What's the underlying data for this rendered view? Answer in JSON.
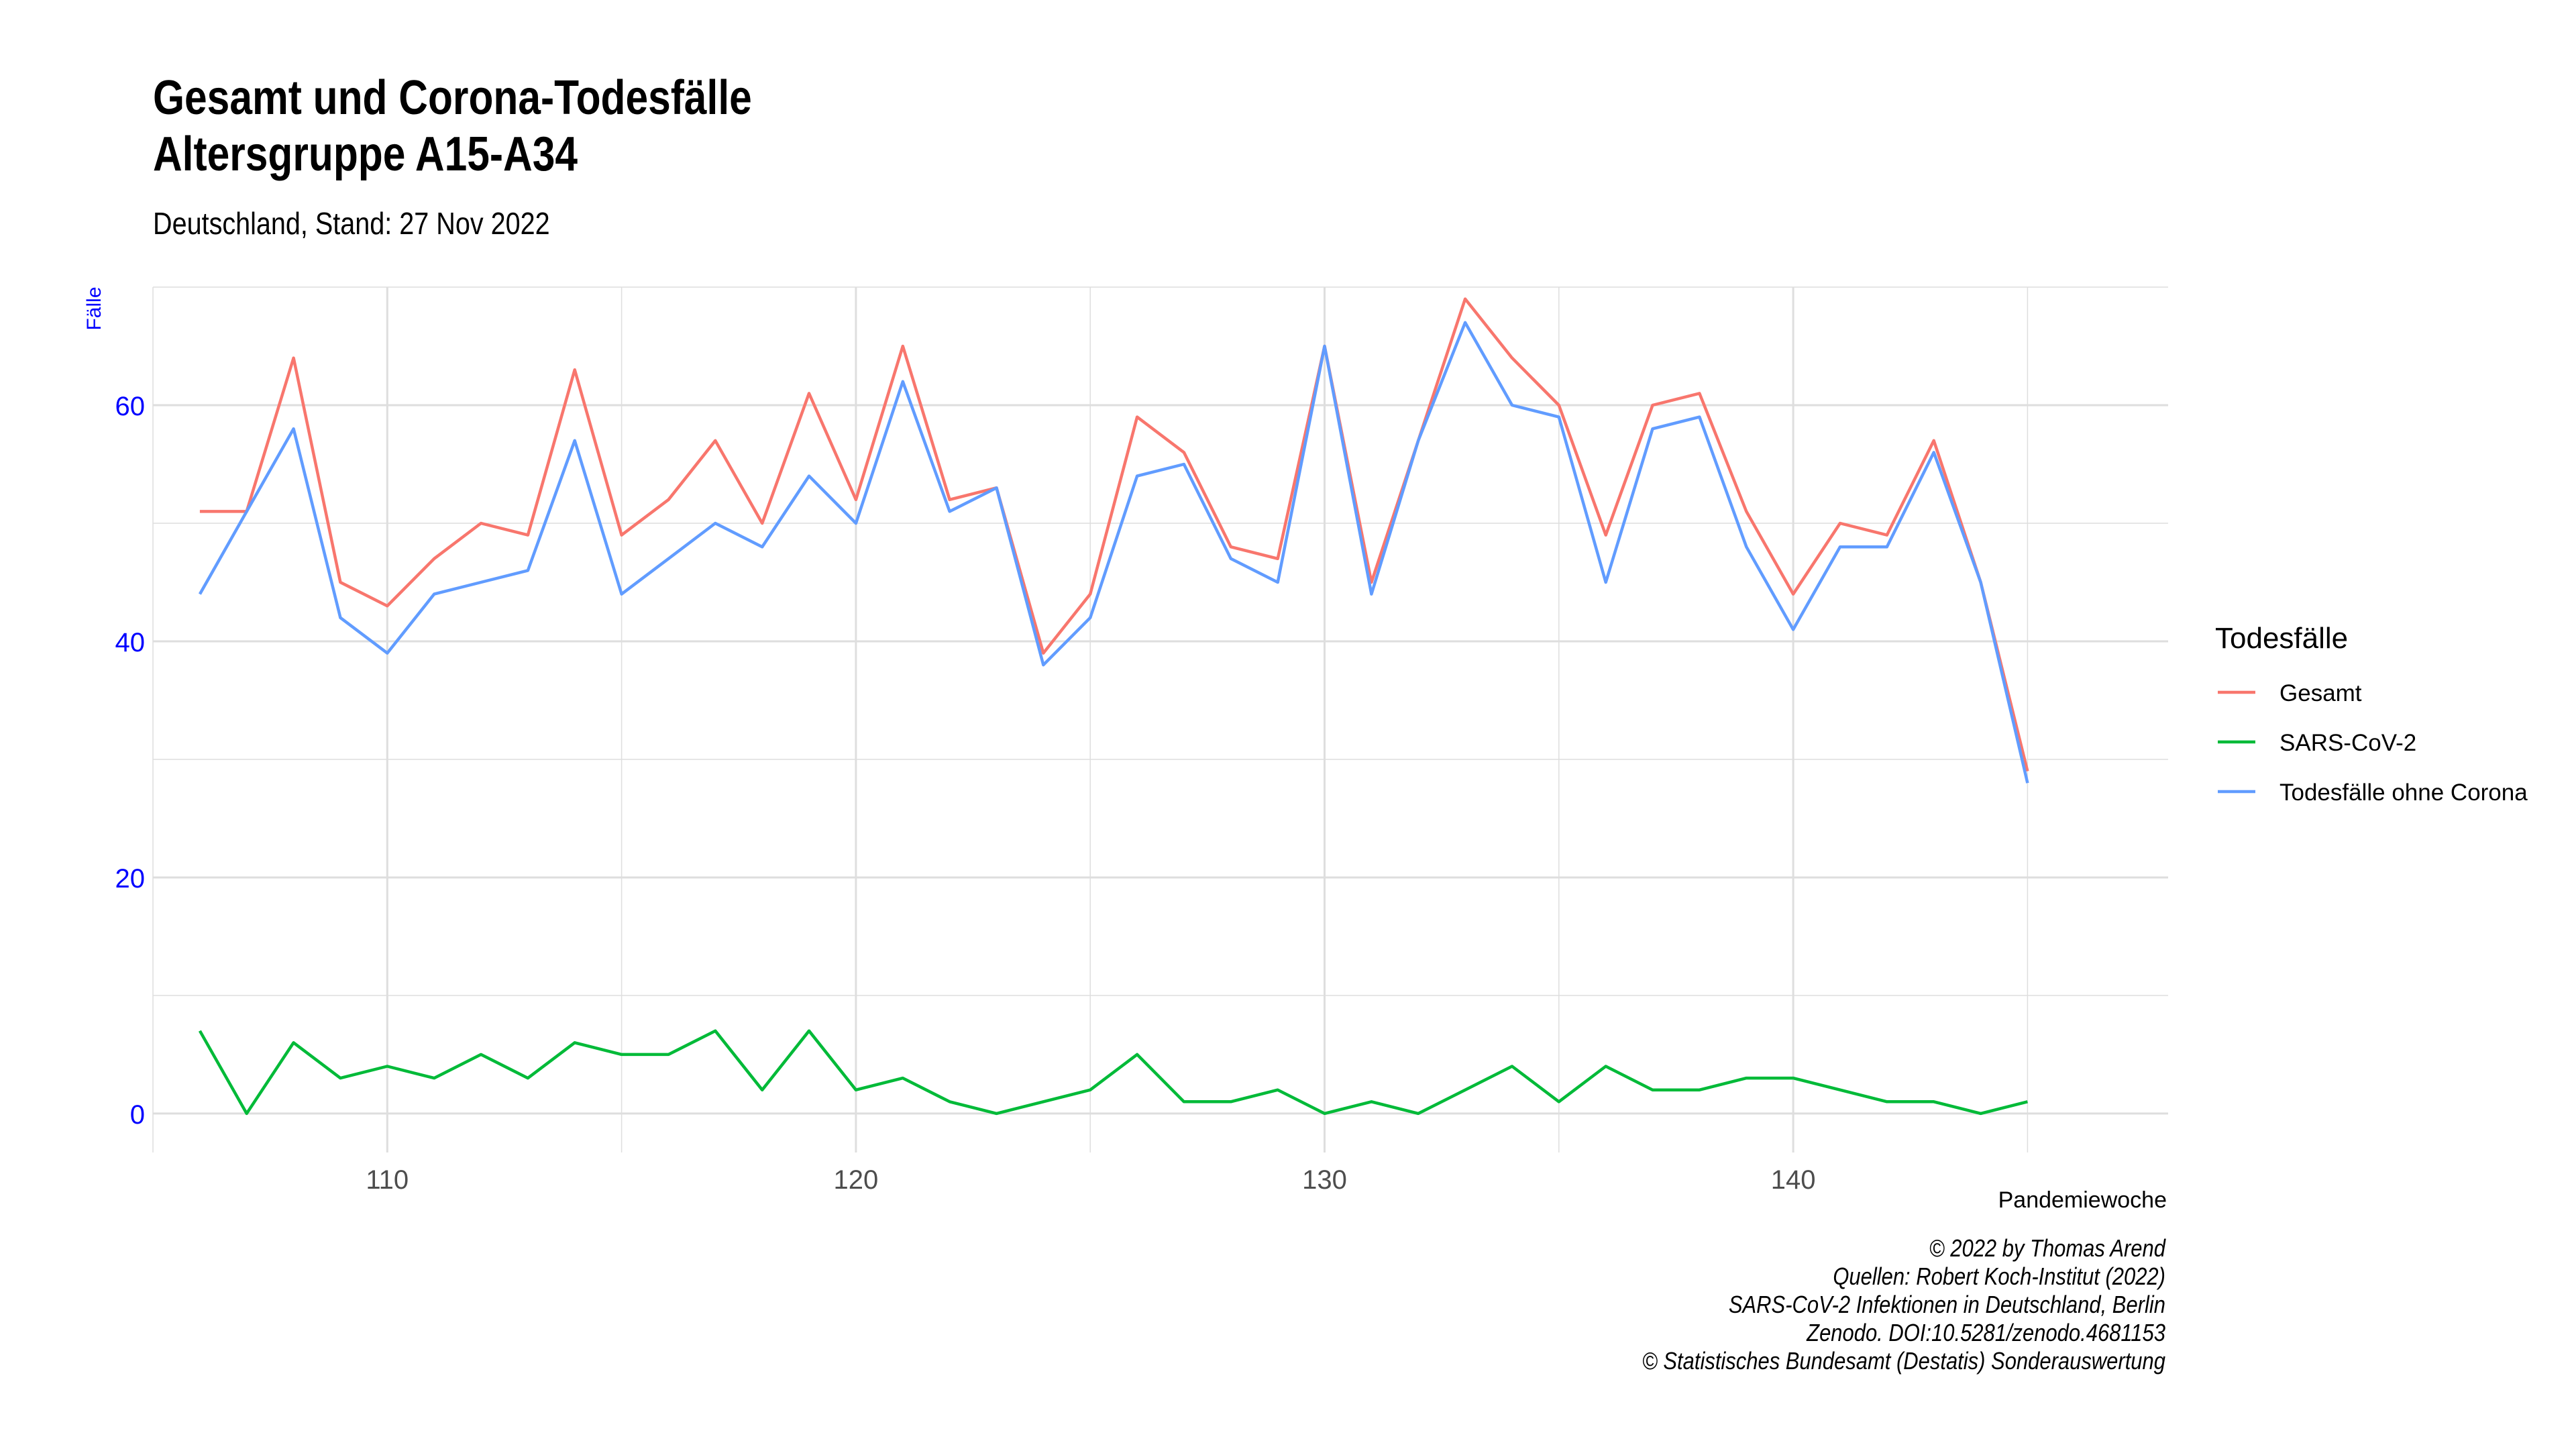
{
  "title_lines": [
    "Gesamt und Corona-Todesfälle",
    "Altersgruppe A15-A34"
  ],
  "subtitle": "Deutschland, Stand: 27 Nov 2022",
  "caption_lines": [
    "© 2022 by Thomas Arend",
    "Quellen: Robert Koch-Institut (2022)",
    "SARS-CoV-2 Infektionen in Deutschland, Berlin",
    "Zenodo. DOI:10.5281/zenodo.4681153",
    "© Statistisches Bundesamt (Destatis) Sonderauswertung"
  ],
  "colors": {
    "gesamt": "#F8766D",
    "sars": "#00BA38",
    "ohne": "#619CFF",
    "axis_y": "#0000FF",
    "grid": "#DEDEDE"
  },
  "chart_data": {
    "type": "line",
    "xlabel": "Pandemiewoche",
    "ylabel": "Fälle",
    "xlim": [
      105,
      148
    ],
    "ylim": [
      -3.3,
      70
    ],
    "x_ticks": [
      110,
      120,
      130,
      140
    ],
    "y_ticks": [
      0,
      20,
      40,
      60
    ],
    "grid": true,
    "legend": {
      "title": "Todesfälle",
      "position": "right"
    },
    "x": [
      106,
      107,
      108,
      109,
      110,
      111,
      112,
      113,
      114,
      115,
      116,
      117,
      118,
      119,
      120,
      121,
      122,
      123,
      124,
      125,
      126,
      127,
      128,
      129,
      130,
      131,
      132,
      133,
      134,
      135,
      136,
      137,
      138,
      139,
      140,
      141,
      142,
      143,
      144,
      145
    ],
    "series": [
      {
        "name": "Gesamt",
        "color": "#F8766D",
        "values": [
          51,
          51,
          64,
          45,
          43,
          47,
          50,
          49,
          63,
          49,
          52,
          57,
          50,
          61,
          52,
          65,
          52,
          53,
          39,
          44,
          59,
          56,
          48,
          47,
          65,
          45,
          57,
          69,
          64,
          60,
          49,
          60,
          61,
          51,
          44,
          50,
          49,
          57,
          45,
          29
        ]
      },
      {
        "name": "SARS-CoV-2",
        "color": "#00BA38",
        "values": [
          7,
          0,
          6,
          3,
          4,
          3,
          5,
          3,
          6,
          5,
          5,
          7,
          2,
          7,
          2,
          3,
          1,
          0,
          1,
          2,
          5,
          1,
          1,
          2,
          0,
          1,
          0,
          2,
          4,
          1,
          4,
          2,
          2,
          3,
          3,
          2,
          1,
          1,
          0,
          1
        ]
      },
      {
        "name": "Todesfälle ohne Corona",
        "color": "#619CFF",
        "values": [
          44,
          51,
          58,
          42,
          39,
          44,
          45,
          46,
          57,
          44,
          47,
          50,
          48,
          54,
          50,
          62,
          51,
          53,
          38,
          42,
          54,
          55,
          47,
          45,
          65,
          44,
          57,
          67,
          60,
          59,
          45,
          58,
          59,
          48,
          41,
          48,
          48,
          56,
          45,
          28
        ]
      }
    ]
  }
}
